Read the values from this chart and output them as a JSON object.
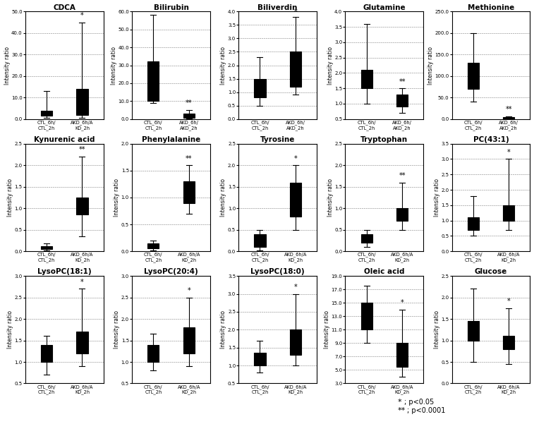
{
  "plots": [
    {
      "title": "CDCA",
      "ylim": [
        0.0,
        50.0
      ],
      "yticks": [
        0.0,
        10.0,
        20.0,
        30.0,
        40.0,
        50.0
      ],
      "group1": {
        "whislo": 0.5,
        "q1": 1.5,
        "med": 2.5,
        "q3": 4.0,
        "whishi": 13.0
      },
      "group2": {
        "whislo": 0.5,
        "q1": 2.0,
        "med": 6.0,
        "q3": 14.0,
        "whishi": 45.0
      },
      "sig": "*",
      "sig_group": 2,
      "xlabel1": "CTL_6h/\nCTL_2h",
      "xlabel2": "AKD_6h/A\nKD_2h"
    },
    {
      "title": "Bilirubin",
      "ylim": [
        0.0,
        60.0
      ],
      "yticks": [
        0.0,
        10.0,
        20.0,
        30.0,
        40.0,
        50.0,
        60.0
      ],
      "group1": {
        "whislo": 9.0,
        "q1": 10.0,
        "med": 24.0,
        "q3": 32.0,
        "whishi": 58.0
      },
      "group2": {
        "whislo": 0.3,
        "q1": 0.8,
        "med": 1.5,
        "q3": 3.0,
        "whishi": 5.0
      },
      "sig": "**",
      "sig_group": 2,
      "xlabel1": "CTL_6h/\nCTL_2h",
      "xlabel2": "AKD_6h/\nAKD_2h"
    },
    {
      "title": "Biliverdin",
      "ylim": [
        0.0,
        4.0
      ],
      "yticks": [
        0.0,
        0.5,
        1.0,
        1.5,
        2.0,
        2.5,
        3.0,
        3.5,
        4.0
      ],
      "group1": {
        "whislo": 0.5,
        "q1": 0.8,
        "med": 1.0,
        "q3": 1.5,
        "whishi": 2.3
      },
      "group2": {
        "whislo": 0.9,
        "q1": 1.2,
        "med": 1.6,
        "q3": 2.5,
        "whishi": 3.8
      },
      "sig": "*",
      "sig_group": 2,
      "xlabel1": "CTL_6h/\nCTL_2h",
      "xlabel2": "AKD_6h/\nAKD_2h"
    },
    {
      "title": "Glutamine",
      "ylim": [
        0.5,
        4.0
      ],
      "yticks": [
        0.5,
        1.0,
        1.5,
        2.0,
        2.5,
        3.0,
        3.5,
        4.0
      ],
      "group1": {
        "whislo": 1.0,
        "q1": 1.5,
        "med": 1.8,
        "q3": 2.1,
        "whishi": 3.6
      },
      "group2": {
        "whislo": 0.7,
        "q1": 0.9,
        "med": 1.1,
        "q3": 1.3,
        "whishi": 1.5
      },
      "sig": "**",
      "sig_group": 2,
      "xlabel1": "CTL_6h/\nCTL_2h",
      "xlabel2": "AKD_6h/\nAKD_2h"
    },
    {
      "title": "Methionine",
      "ylim": [
        0.0,
        250.0
      ],
      "yticks": [
        0.0,
        50.0,
        100.0,
        150.0,
        200.0,
        250.0
      ],
      "group1": {
        "whislo": 40.0,
        "q1": 70.0,
        "med": 100.0,
        "q3": 130.0,
        "whishi": 200.0
      },
      "group2": {
        "whislo": 0.5,
        "q1": 1.0,
        "med": 2.0,
        "q3": 4.0,
        "whishi": 6.0
      },
      "sig": "**",
      "sig_group": 2,
      "xlabel1": "CTL_6h/\nCTL_2h",
      "xlabel2": "AKD_6h/\nAKD_2h"
    },
    {
      "title": "Kynurenic acid",
      "ylim": [
        0.0,
        2.5
      ],
      "yticks": [
        0.0,
        0.5,
        1.0,
        1.5,
        2.0,
        2.5
      ],
      "group1": {
        "whislo": 0.02,
        "q1": 0.05,
        "med": 0.08,
        "q3": 0.12,
        "whishi": 0.18
      },
      "group2": {
        "whislo": 0.35,
        "q1": 0.85,
        "med": 1.0,
        "q3": 1.25,
        "whishi": 2.2
      },
      "sig": "**",
      "sig_group": 2,
      "xlabel1": "CTL_6h/\nCTL_2h",
      "xlabel2": "AKD_6h/A\nKD_2h"
    },
    {
      "title": "Phenylalanine",
      "ylim": [
        0.0,
        2.0
      ],
      "yticks": [
        0.0,
        0.5,
        1.0,
        1.5,
        2.0
      ],
      "group1": {
        "whislo": 0.02,
        "q1": 0.05,
        "med": 0.1,
        "q3": 0.15,
        "whishi": 0.2
      },
      "group2": {
        "whislo": 0.7,
        "q1": 0.9,
        "med": 1.05,
        "q3": 1.3,
        "whishi": 1.6
      },
      "sig": "**",
      "sig_group": 2,
      "xlabel1": "CTL_6h/\nCTL_2h",
      "xlabel2": "AKD_6h/A\nKD_2h"
    },
    {
      "title": "Tyrosine",
      "ylim": [
        0.0,
        2.5
      ],
      "yticks": [
        0.0,
        0.5,
        1.0,
        1.5,
        2.0,
        2.5
      ],
      "group1": {
        "whislo": 0.02,
        "q1": 0.1,
        "med": 0.2,
        "q3": 0.4,
        "whishi": 0.5
      },
      "group2": {
        "whislo": 0.5,
        "q1": 0.8,
        "med": 1.0,
        "q3": 1.6,
        "whishi": 2.0
      },
      "sig": "*",
      "sig_group": 2,
      "xlabel1": "CTL_6h/\nCTL_2h",
      "xlabel2": "AKD_6h/A\nKD_2h"
    },
    {
      "title": "Tryptophan",
      "ylim": [
        0.0,
        2.5
      ],
      "yticks": [
        0.0,
        0.5,
        1.0,
        1.5,
        2.0,
        2.5
      ],
      "group1": {
        "whislo": 0.1,
        "q1": 0.2,
        "med": 0.3,
        "q3": 0.4,
        "whishi": 0.5
      },
      "group2": {
        "whislo": 0.5,
        "q1": 0.7,
        "med": 0.85,
        "q3": 1.0,
        "whishi": 1.6
      },
      "sig": "**",
      "sig_group": 2,
      "xlabel1": "CTL_6h/\nCTL_2h",
      "xlabel2": "AKD_6h/A\nKD_2h"
    },
    {
      "title": "PC(43:1)",
      "ylim": [
        0.0,
        3.5
      ],
      "yticks": [
        0.0,
        0.5,
        1.0,
        1.5,
        2.0,
        2.5,
        3.0,
        3.5
      ],
      "group1": {
        "whislo": 0.5,
        "q1": 0.7,
        "med": 0.9,
        "q3": 1.1,
        "whishi": 1.8
      },
      "group2": {
        "whislo": 0.7,
        "q1": 1.0,
        "med": 1.2,
        "q3": 1.5,
        "whishi": 3.0
      },
      "sig": "*",
      "sig_group": 2,
      "xlabel1": "CTL_6h/\nCTL_2h",
      "xlabel2": "AKD_6h/A\nKD_2h"
    },
    {
      "title": "LysoPC(18:1)",
      "ylim": [
        0.5,
        3.0
      ],
      "yticks": [
        0.5,
        1.0,
        1.5,
        2.0,
        2.5,
        3.0
      ],
      "group1": {
        "whislo": 0.7,
        "q1": 1.0,
        "med": 1.1,
        "q3": 1.4,
        "whishi": 1.6
      },
      "group2": {
        "whislo": 0.9,
        "q1": 1.2,
        "med": 1.4,
        "q3": 1.7,
        "whishi": 2.7
      },
      "sig": "*",
      "sig_group": 2,
      "xlabel1": "CTL_6h/\nCTL_2h",
      "xlabel2": "AKD_6h/A\nKD_2h"
    },
    {
      "title": "LysoPC(20:4)",
      "ylim": [
        0.5,
        3.0
      ],
      "yticks": [
        0.5,
        1.0,
        1.5,
        2.0,
        2.5,
        3.0
      ],
      "group1": {
        "whislo": 0.8,
        "q1": 1.0,
        "med": 1.15,
        "q3": 1.4,
        "whishi": 1.65
      },
      "group2": {
        "whislo": 0.9,
        "q1": 1.2,
        "med": 1.4,
        "q3": 1.8,
        "whishi": 2.5
      },
      "sig": "*",
      "sig_group": 2,
      "xlabel1": "CTL_6h/\nCTL_2h",
      "xlabel2": "AKD_6h/A\nKD_2h"
    },
    {
      "title": "LysoPC(18:0)",
      "ylim": [
        0.5,
        3.5
      ],
      "yticks": [
        0.5,
        1.0,
        1.5,
        2.0,
        2.5,
        3.0,
        3.5
      ],
      "group1": {
        "whislo": 0.8,
        "q1": 1.0,
        "med": 1.15,
        "q3": 1.35,
        "whishi": 1.7
      },
      "group2": {
        "whislo": 1.0,
        "q1": 1.3,
        "med": 1.6,
        "q3": 2.0,
        "whishi": 3.0
      },
      "sig": "*",
      "sig_group": 2,
      "xlabel1": "CTL_6h/\nCTL_2h",
      "xlabel2": "AKD_6h/A\nKD_2h"
    },
    {
      "title": "Oleic acid",
      "ylim": [
        3.0,
        19.0
      ],
      "yticks": [
        3.0,
        5.0,
        7.0,
        9.0,
        11.0,
        13.0,
        15.0,
        17.0,
        19.0
      ],
      "group1": {
        "whislo": 9.0,
        "q1": 11.0,
        "med": 13.0,
        "q3": 15.0,
        "whishi": 17.5
      },
      "group2": {
        "whislo": 4.0,
        "q1": 5.5,
        "med": 7.0,
        "q3": 9.0,
        "whishi": 14.0
      },
      "sig": "*",
      "sig_group": 2,
      "xlabel1": "CTL_6h/\nCTL_2h",
      "xlabel2": "AKD_6h/A\nKD_2h"
    },
    {
      "title": "Glucose",
      "ylim": [
        0.0,
        2.5
      ],
      "yticks": [
        0.0,
        0.5,
        1.0,
        1.5,
        2.0,
        2.5
      ],
      "group1": {
        "whislo": 0.5,
        "q1": 1.0,
        "med": 1.2,
        "q3": 1.45,
        "whishi": 2.2
      },
      "group2": {
        "whislo": 0.45,
        "q1": 0.8,
        "med": 1.0,
        "q3": 1.1,
        "whishi": 1.75
      },
      "sig": "*",
      "sig_group": 2,
      "xlabel1": "CTL_6h/\nCTL_2h",
      "xlabel2": "AKD_6h/A\nKD_2h"
    }
  ],
  "ylabel": "Intensity ratio",
  "nrows": 3,
  "ncols": 5,
  "legend_text1": "; p<0.05",
  "legend_text2": "; p<0.0001"
}
